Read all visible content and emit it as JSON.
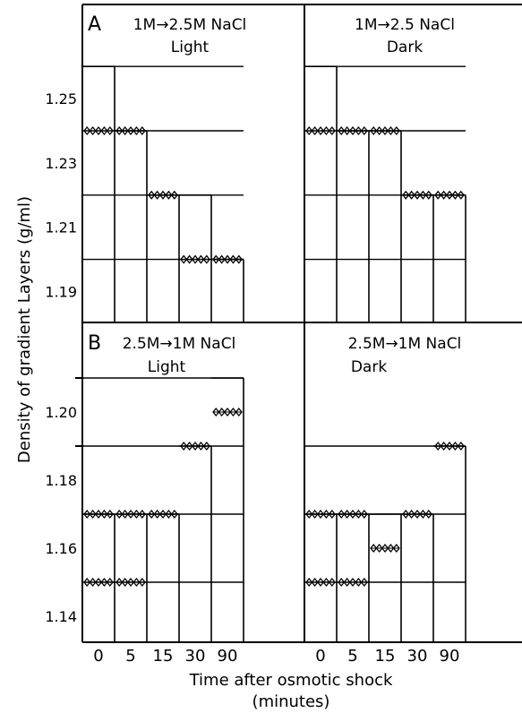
{
  "figure": {
    "ylabel": "Density of gradient Layers (g/ml)",
    "xlabel_line1": "Time after osmotic shock",
    "xlabel_line2": "(minutes)"
  },
  "chart_data": [
    {
      "type": "step",
      "panel": "A",
      "title_line1": "1M→2.5M NaCl",
      "title_line2": "Light",
      "categories": [
        "0",
        "5",
        "15",
        "30",
        "90"
      ],
      "ylabel": "Density of gradient Layers (g/ml)",
      "yticks": [
        1.25,
        1.23,
        1.21,
        1.19
      ],
      "gradient_layers": [
        1.26,
        1.24,
        1.22,
        1.2
      ],
      "top_layer": [
        1.26,
        1.24,
        1.22,
        1.22,
        1.2
      ],
      "band_density": [
        1.24,
        1.24,
        1.22,
        1.2,
        1.2
      ]
    },
    {
      "type": "step",
      "panel": "A",
      "title_line1": "1M→2.5 NaCl",
      "title_line2": "Dark",
      "categories": [
        "0",
        "5",
        "15",
        "30",
        "90"
      ],
      "gradient_layers": [
        1.26,
        1.24,
        1.22,
        1.2
      ],
      "top_layer": [
        1.26,
        1.24,
        1.24,
        1.22,
        1.22
      ],
      "band_density": [
        1.24,
        1.24,
        1.24,
        1.22,
        1.22
      ]
    },
    {
      "type": "step",
      "panel": "B",
      "title_line1": "2.5M→1M NaCl",
      "title_line2": "Light",
      "categories": [
        "0",
        "5",
        "15",
        "30",
        "90"
      ],
      "yticks": [
        1.2,
        1.18,
        1.16,
        1.14
      ],
      "gradient_layers": [
        1.21,
        1.19,
        1.17,
        1.15
      ],
      "top_layer": [
        1.17,
        1.17,
        1.17,
        1.19,
        1.21
      ],
      "bands": [
        [
          1.17,
          1.15
        ],
        [
          1.17,
          1.15
        ],
        [
          1.17
        ],
        [
          1.19
        ],
        [
          1.2
        ]
      ]
    },
    {
      "type": "step",
      "panel": "B",
      "title_line1": "2.5M→1M NaCl",
      "title_line2": "Dark",
      "categories": [
        "0",
        "5",
        "15",
        "30",
        "90"
      ],
      "gradient_layers": [
        1.19,
        1.17,
        1.15
      ],
      "top_layer": [
        1.17,
        1.17,
        1.17,
        1.17,
        1.19
      ],
      "bands": [
        [
          1.17,
          1.15
        ],
        [
          1.17,
          1.15
        ],
        [
          1.16
        ],
        [
          1.17
        ],
        [
          1.19
        ]
      ]
    }
  ]
}
